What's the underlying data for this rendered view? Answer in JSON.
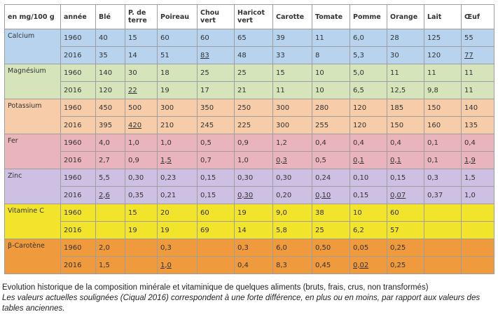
{
  "table": {
    "headers": [
      "en mg/100 g",
      "année",
      "Blé",
      "P. de terre",
      "Poireau",
      "Chou vert",
      "Haricot vert",
      "Carotte",
      "Tomate",
      "Pomme",
      "Orange",
      "Lait",
      "Œuf"
    ],
    "nutrients": [
      {
        "name": "Calcium",
        "color": "#b7d3ee",
        "rows": [
          {
            "year": "1960",
            "values": [
              "40",
              "15",
              "60",
              "60",
              "65",
              "39",
              "11",
              "6,0",
              "28",
              "125",
              "55"
            ],
            "underlined": []
          },
          {
            "year": "2016",
            "values": [
              "35",
              "14",
              "51",
              "83",
              "48",
              "33",
              "8",
              "5,3",
              "30",
              "120",
              "77"
            ],
            "underlined": [
              3,
              10
            ]
          }
        ]
      },
      {
        "name": "Magnésium",
        "color": "#d6e4bc",
        "rows": [
          {
            "year": "1960",
            "values": [
              "140",
              "30",
              "18",
              "25",
              "25",
              "15",
              "10",
              "5,0",
              "11",
              "11",
              "11"
            ],
            "underlined": []
          },
          {
            "year": "2016",
            "values": [
              "120",
              "22",
              "19",
              "17",
              "21",
              "11",
              "10",
              "6,5",
              "12,5",
              "9,8",
              "11"
            ],
            "underlined": [
              1
            ]
          }
        ]
      },
      {
        "name": "Potassium",
        "color": "#f7cca8",
        "rows": [
          {
            "year": "1960",
            "values": [
              "450",
              "500",
              "300",
              "350",
              "250",
              "300",
              "280",
              "120",
              "185",
              "150",
              "140"
            ],
            "underlined": []
          },
          {
            "year": "2016",
            "values": [
              "395",
              "420",
              "210",
              "245",
              "225",
              "300",
              "255",
              "120",
              "150",
              "160",
              "135"
            ],
            "underlined": [
              1
            ]
          }
        ]
      },
      {
        "name": "Fer",
        "color": "#e9b4bc",
        "rows": [
          {
            "year": "1960",
            "values": [
              "4,0",
              "1,0",
              "1,0",
              "0,5",
              "0,9",
              "1,2",
              "0,4",
              "0,4",
              "0,4",
              "0,1",
              "0,4"
            ],
            "underlined": []
          },
          {
            "year": "2016",
            "values": [
              "2,7",
              "0,9",
              "1,5",
              "0,7",
              "1,0",
              "0,3",
              "0,5",
              "0,1",
              "0,1",
              "0,1",
              "1,9"
            ],
            "underlined": [
              2,
              5,
              7,
              8,
              10
            ]
          }
        ]
      },
      {
        "name": "Zinc",
        "color": "#cdc0e2",
        "rows": [
          {
            "year": "1960",
            "values": [
              "5,5",
              "0,30",
              "0,23",
              "0,15",
              "0,30",
              "0,30",
              "0,24",
              "0,10",
              "0,15",
              "0,3",
              "1,5"
            ],
            "underlined": []
          },
          {
            "year": "2016",
            "values": [
              "2,6",
              "0,35",
              "0,21",
              "0,15",
              "0,30",
              "0,20",
              "0,10",
              "0,15",
              "0,07",
              "0,37",
              "1,0"
            ],
            "underlined": [
              0,
              4,
              6,
              8
            ]
          }
        ]
      },
      {
        "name": "Vitamine C",
        "color": "#f2e42a",
        "rows": [
          {
            "year": "1960",
            "values": [
              "",
              "15",
              "20",
              "60",
              "19",
              "9,0",
              "38",
              "10",
              "60",
              "",
              ""
            ],
            "underlined": []
          },
          {
            "year": "2016",
            "values": [
              "",
              "19",
              "19",
              "69",
              "14",
              "5,8",
              "25",
              "6,2",
              "57",
              "",
              ""
            ],
            "underlined": []
          }
        ]
      },
      {
        "name": "β-Carotène",
        "color": "#ef9a3c",
        "rows": [
          {
            "year": "1960",
            "values": [
              "2,0",
              "",
              "0,3",
              "",
              "0,3",
              "6,0",
              "0,50",
              "0,05",
              "0,25",
              "",
              ""
            ],
            "underlined": []
          },
          {
            "year": "2016",
            "values": [
              "1,5",
              "",
              "1,0",
              "",
              "0,4",
              "8,3",
              "0,45",
              "0,02",
              "0,25",
              "",
              ""
            ],
            "underlined": [
              2,
              7
            ]
          }
        ]
      }
    ]
  },
  "caption": {
    "line1": "Evolution historique de la composition minérale et vitaminique de quelques aliments (bruts, frais, crus, non transformés)",
    "line2": "Les valeurs actuelles soulignées (Ciqual 2016) correspondent à une forte différence, en plus ou en moins, par rapport aux valeurs des tables anciennes."
  }
}
